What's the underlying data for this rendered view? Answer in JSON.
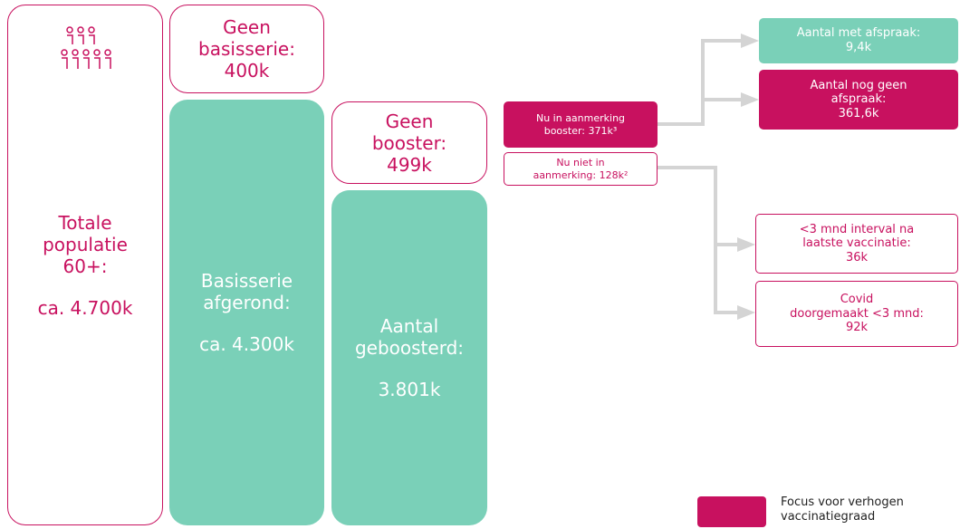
{
  "nodes": [
    {
      "lines": [
        "Totale",
        "populatie",
        "60+:",
        "ca. 4.700k"
      ]
    },
    {
      "lines": [
        "Geen",
        "basisserie:",
        "400k"
      ]
    },
    {
      "lines": [
        "Basisserie",
        "afgerond:",
        "ca. 4.300k"
      ]
    },
    {
      "lines": [
        "Geen",
        "booster:",
        "499k"
      ]
    },
    {
      "lines": [
        "Aantal",
        "geboosterd:",
        "3.801k"
      ]
    },
    {
      "lines": [
        "Nu in aanmerking",
        "booster: 371k³"
      ]
    },
    {
      "lines": [
        "Nu niet in",
        "aanmerking: 128k²"
      ]
    },
    {
      "lines": [
        "Aantal met afspraak:",
        "9,4k"
      ]
    },
    {
      "lines": [
        "Aantal nog geen",
        "afspraak:",
        "361,6k"
      ]
    },
    {
      "lines": [
        "<3 mnd interval na",
        "laatste vaccinatie:",
        "36k"
      ]
    },
    {
      "lines": [
        "Covid",
        "doorgemaakt <3 mnd:",
        "92k"
      ]
    }
  ],
  "legend": {
    "lines": [
      "Focus voor verhogen",
      "vaccinatiegraad"
    ]
  }
}
